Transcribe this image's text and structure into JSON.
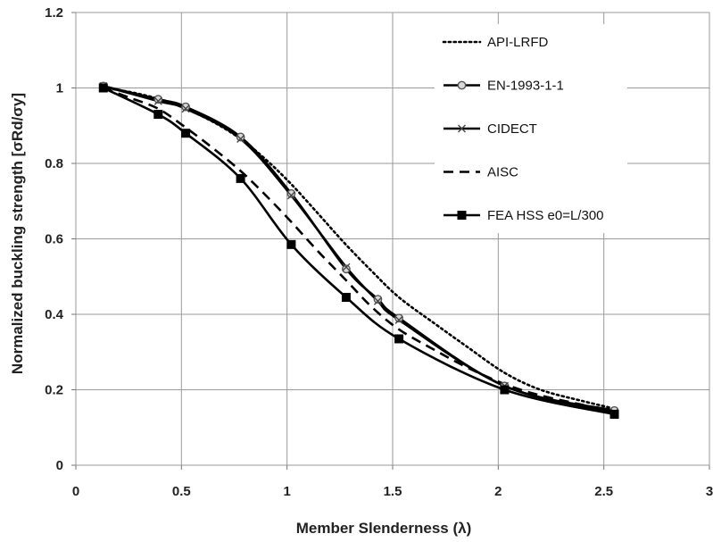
{
  "chart_data": {
    "type": "line",
    "xlabel": "Member Slenderness (λ)",
    "ylabel": "Normalized buckling strength [σRd/σy]",
    "xlim": [
      0,
      3
    ],
    "ylim": [
      0,
      1.2
    ],
    "x_ticks": [
      "0",
      "0.5",
      "1",
      "1.5",
      "2",
      "2.5",
      "3"
    ],
    "y_ticks": [
      "0",
      "0.2",
      "0.4",
      "0.6",
      "0.8",
      "1",
      "1.2"
    ],
    "grid": true,
    "legend_position": "top-right",
    "series": [
      {
        "name": "API-LRFD",
        "style": "dotted",
        "marker": "none",
        "x": [
          0.13,
          0.25,
          0.4,
          0.52,
          0.65,
          0.78,
          0.9,
          1.02,
          1.15,
          1.27,
          1.4,
          1.53,
          1.7,
          1.85,
          2.03,
          2.2,
          2.4,
          2.55
        ],
        "y": [
          1.0,
          0.99,
          0.97,
          0.945,
          0.91,
          0.865,
          0.81,
          0.745,
          0.665,
          0.59,
          0.515,
          0.445,
          0.375,
          0.315,
          0.245,
          0.2,
          0.17,
          0.15
        ]
      },
      {
        "name": "EN-1993-1-1",
        "style": "solid",
        "marker": "circle",
        "x": [
          0.13,
          0.39,
          0.52,
          0.78,
          1.02,
          1.28,
          1.43,
          1.53,
          2.03,
          2.55
        ],
        "y": [
          1.005,
          0.97,
          0.95,
          0.87,
          0.72,
          0.52,
          0.44,
          0.39,
          0.21,
          0.145
        ]
      },
      {
        "name": "CIDECT",
        "style": "solid",
        "marker": "x",
        "x": [
          0.13,
          0.39,
          0.52,
          0.78,
          1.02,
          1.28,
          1.43,
          1.53,
          2.03,
          2.55
        ],
        "y": [
          1.005,
          0.965,
          0.945,
          0.865,
          0.715,
          0.525,
          0.435,
          0.385,
          0.21,
          0.14
        ]
      },
      {
        "name": "AISC",
        "style": "dashed",
        "marker": "none",
        "x": [
          0.13,
          0.25,
          0.39,
          0.52,
          0.65,
          0.78,
          0.9,
          1.02,
          1.15,
          1.28,
          1.4,
          1.53,
          1.7,
          1.85,
          2.03,
          2.2,
          2.4,
          2.55
        ],
        "y": [
          1.0,
          0.975,
          0.945,
          0.895,
          0.84,
          0.78,
          0.715,
          0.645,
          0.565,
          0.49,
          0.42,
          0.36,
          0.305,
          0.26,
          0.215,
          0.185,
          0.16,
          0.14
        ]
      },
      {
        "name": "FEA HSS e0=L/300",
        "style": "solid",
        "marker": "square",
        "x": [
          0.13,
          0.39,
          0.52,
          0.78,
          1.02,
          1.28,
          1.53,
          2.03,
          2.55
        ],
        "y": [
          1.0,
          0.93,
          0.88,
          0.76,
          0.585,
          0.445,
          0.335,
          0.2,
          0.135
        ]
      }
    ]
  }
}
